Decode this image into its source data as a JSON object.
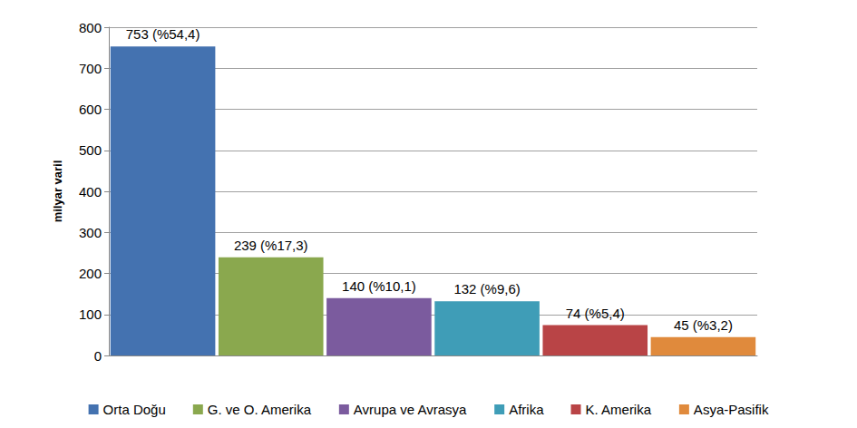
{
  "chart_data": {
    "type": "bar",
    "y_label": "milyar varil",
    "categories": [
      "Orta Doğu",
      "G. ve O. Amerika",
      "Avrupa ve Avrasya",
      "Afrika",
      "K. Amerika",
      "Asya-Pasifik"
    ],
    "values": [
      753,
      239,
      140,
      132,
      74,
      45
    ],
    "value_labels": [
      "753 (%54,4)",
      "239 (%17,3)",
      "140 (%10,1)",
      "132 (%9,6)",
      "74 (%5,4)",
      "45 (%3,2)"
    ],
    "colors": [
      "#4472b0",
      "#8aa84e",
      "#7b5b9e",
      "#3f9db7",
      "#b94446",
      "#e08a3c"
    ],
    "ylim": [
      0,
      800
    ],
    "yticks": [
      0,
      100,
      200,
      300,
      400,
      500,
      600,
      700,
      800
    ],
    "grid": true,
    "legend": "bottom",
    "data_labels": true,
    "tick_labels": "y"
  }
}
